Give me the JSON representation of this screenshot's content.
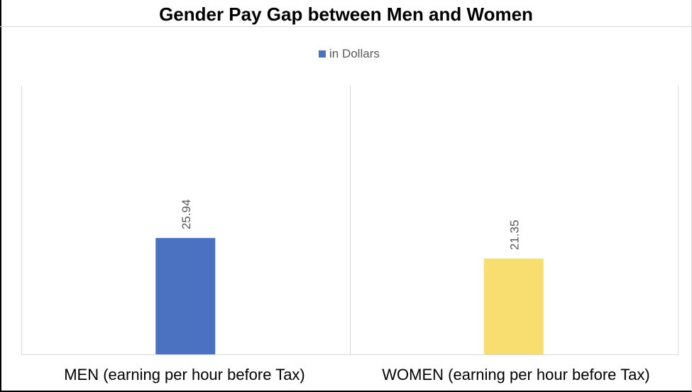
{
  "chart_data": {
    "type": "bar",
    "title": "Gender Pay Gap between Men and Women",
    "categories": [
      "MEN (earning per hour before Tax)",
      "WOMEN (earning per hour before Tax)"
    ],
    "series": [
      {
        "name": "in Dollars",
        "values": [
          25.94,
          21.35
        ]
      }
    ],
    "bar_colors": [
      "#4a72c0",
      "#f8de70"
    ],
    "data_labels": [
      "25.94",
      "21.35"
    ],
    "ylim": [
      0,
      60
    ],
    "y_axis_visible": false,
    "grid": false,
    "legend_position": "top-center",
    "data_label_color": "#595959"
  }
}
